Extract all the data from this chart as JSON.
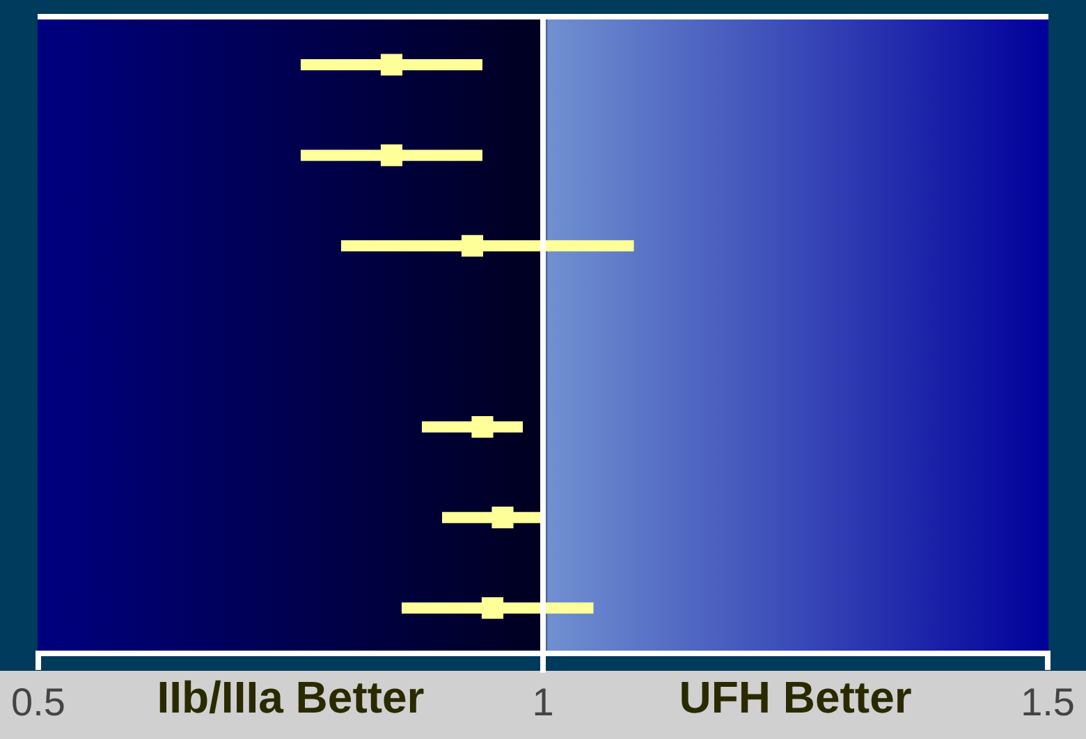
{
  "chart_data": {
    "type": "scatter",
    "orientation": "horizontal",
    "categories": [
      null,
      null,
      null,
      null,
      null,
      null,
      null
    ],
    "series": [
      {
        "color": "#ffff99",
        "values": [
          0.85,
          0.85,
          0.93,
          null,
          0.94,
          0.96,
          0.95
        ],
        "errors": [
          [
            0.76,
            0.94
          ],
          [
            0.76,
            0.94
          ],
          [
            0.8,
            1.09
          ],
          null,
          [
            0.88,
            0.98
          ],
          [
            0.9,
            1.0
          ],
          [
            0.86,
            1.05
          ]
        ]
      }
    ],
    "xlim": [
      0.5,
      1.5
    ],
    "xticks": [
      0.5,
      1,
      1.5
    ],
    "ref_lines": [
      {
        "axis": "x",
        "value": 1,
        "color": "#ffffff"
      }
    ],
    "annotations": [
      "IIb/IIIa Better",
      "UFH Better"
    ],
    "marker": "square",
    "tick_labels": "x"
  }
}
